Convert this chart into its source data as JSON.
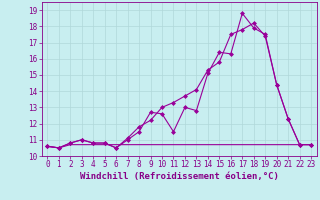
{
  "background_color": "#c8eef0",
  "grid_color": "#b0d8da",
  "line_color": "#990099",
  "xlabel": "Windchill (Refroidissement éolien,°C)",
  "xlim": [
    -0.5,
    23.5
  ],
  "ylim": [
    10,
    19.5
  ],
  "xticks": [
    0,
    1,
    2,
    3,
    4,
    5,
    6,
    7,
    8,
    9,
    10,
    11,
    12,
    13,
    14,
    15,
    16,
    17,
    18,
    19,
    20,
    21,
    22,
    23
  ],
  "yticks": [
    10,
    11,
    12,
    13,
    14,
    15,
    16,
    17,
    18,
    19
  ],
  "series1_x": [
    0,
    1,
    2,
    3,
    4,
    5,
    6,
    7,
    8,
    9,
    10,
    11,
    12,
    13,
    14,
    15,
    16,
    17,
    18,
    19,
    20,
    21,
    22,
    23
  ],
  "series1_y": [
    10.6,
    10.5,
    10.8,
    11.0,
    10.8,
    10.8,
    10.5,
    11.0,
    11.5,
    12.7,
    12.6,
    11.5,
    13.0,
    12.8,
    15.1,
    16.4,
    16.3,
    18.8,
    17.9,
    17.5,
    14.4,
    12.3,
    10.7,
    10.7
  ],
  "series2_x": [
    0,
    1,
    2,
    3,
    4,
    5,
    6,
    7,
    8,
    9,
    10,
    11,
    12,
    13,
    14,
    15,
    16,
    17,
    18,
    19,
    20,
    21,
    22,
    23
  ],
  "series2_y": [
    10.6,
    10.5,
    10.8,
    11.0,
    10.8,
    10.8,
    10.5,
    11.1,
    11.8,
    12.2,
    13.0,
    13.3,
    13.7,
    14.1,
    15.3,
    15.8,
    17.5,
    17.8,
    18.2,
    17.4,
    14.4,
    12.3,
    10.7,
    10.7
  ],
  "series3_x": [
    0,
    1,
    2,
    3,
    4,
    5,
    6,
    7,
    8,
    9,
    10,
    11,
    12,
    13,
    14,
    15,
    16,
    17,
    18,
    19,
    20,
    21,
    22,
    23
  ],
  "series3_y": [
    10.6,
    10.5,
    10.7,
    10.7,
    10.7,
    10.7,
    10.7,
    10.7,
    10.7,
    10.7,
    10.7,
    10.7,
    10.7,
    10.7,
    10.7,
    10.7,
    10.7,
    10.7,
    10.7,
    10.7,
    10.7,
    10.7,
    10.7,
    10.7
  ],
  "font_color": "#880088",
  "tick_fontsize": 5.5,
  "label_fontsize": 6.5
}
